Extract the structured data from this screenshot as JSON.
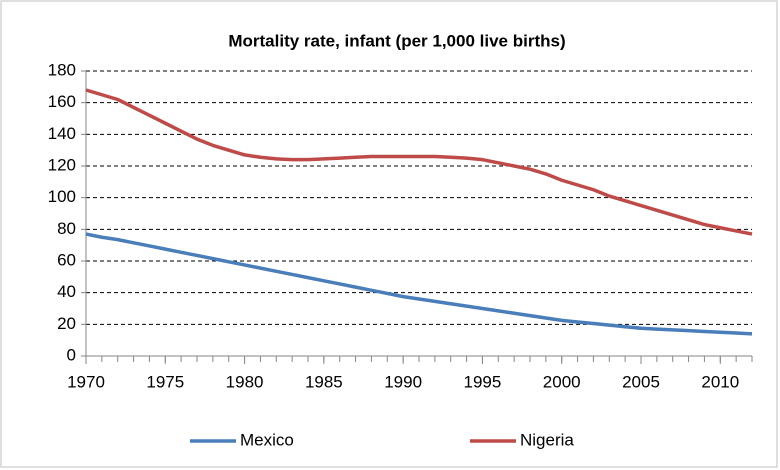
{
  "chart_data": {
    "type": "line",
    "title": "Mortality rate, infant (per 1,000 live births)",
    "x": [
      1970,
      1971,
      1972,
      1973,
      1974,
      1975,
      1976,
      1977,
      1978,
      1979,
      1980,
      1981,
      1982,
      1983,
      1984,
      1985,
      1986,
      1987,
      1988,
      1989,
      1990,
      1991,
      1992,
      1993,
      1994,
      1995,
      1996,
      1997,
      1998,
      1999,
      2000,
      2001,
      2002,
      2003,
      2004,
      2005,
      2006,
      2007,
      2008,
      2009,
      2010,
      2011,
      2012
    ],
    "series": [
      {
        "name": "Mexico",
        "color": "#4a7ebb",
        "values": [
          77,
          75,
          73.5,
          71.5,
          69.5,
          67.5,
          65.5,
          63.5,
          61.5,
          59.5,
          57.5,
          55.5,
          53.5,
          51.5,
          49.5,
          47.5,
          45.5,
          43.5,
          41.5,
          39.5,
          37.5,
          36,
          34.5,
          33,
          31.5,
          30,
          28.5,
          27,
          25.5,
          24,
          22.5,
          21.5,
          20.5,
          19.5,
          18.5,
          17.5,
          17,
          16.5,
          16,
          15.5,
          15,
          14.5,
          14
        ]
      },
      {
        "name": "Nigeria",
        "color": "#be4b48",
        "values": [
          168,
          165,
          162,
          157,
          152,
          147,
          142,
          137,
          133,
          130,
          127,
          125.5,
          124.5,
          124,
          124,
          124.5,
          125,
          125.5,
          126,
          126,
          126,
          126,
          126,
          125.5,
          125,
          124,
          122,
          120,
          118,
          115,
          111,
          108,
          105,
          101,
          98,
          95,
          92,
          89,
          86,
          83,
          81,
          79,
          77
        ]
      }
    ],
    "xlim": [
      1970,
      2012
    ],
    "xticks": [
      1970,
      1975,
      1980,
      1985,
      1990,
      1995,
      2000,
      2005,
      2010
    ],
    "ylim": [
      0,
      180
    ],
    "yticks": [
      0,
      20,
      40,
      60,
      80,
      100,
      120,
      140,
      160,
      180
    ],
    "grid": true,
    "legend": "bottom"
  }
}
